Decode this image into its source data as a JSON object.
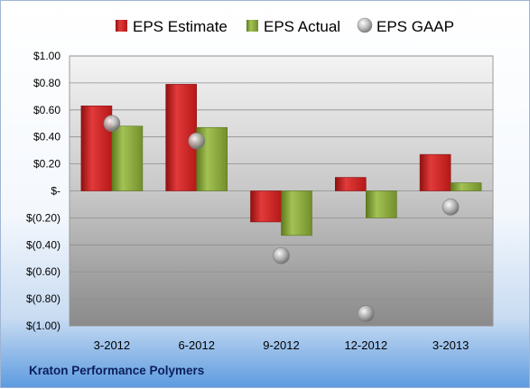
{
  "company": "Kraton Performance Polymers",
  "chart_data": {
    "type": "bar",
    "categories": [
      "3-2012",
      "6-2012",
      "9-2012",
      "12-2012",
      "3-2013"
    ],
    "series": [
      {
        "name": "EPS Estimate",
        "kind": "bar",
        "color": "#d42a2a",
        "values": [
          0.63,
          0.79,
          -0.23,
          0.1,
          0.27
        ]
      },
      {
        "name": "EPS Actual",
        "kind": "bar",
        "color": "#8dac3c",
        "values": [
          0.48,
          0.47,
          -0.33,
          -0.2,
          0.06
        ]
      },
      {
        "name": "EPS GAAP",
        "kind": "scatter",
        "color": "#b8b8b8",
        "values": [
          0.5,
          0.37,
          -0.48,
          -0.91,
          -0.12
        ]
      }
    ],
    "yticks": [
      "$1.00",
      "$0.80",
      "$0.60",
      "$0.40",
      "$0.20",
      "$-",
      "$(0.20)",
      "$(0.40)",
      "$(0.60)",
      "$(0.80)",
      "$(1.00)"
    ],
    "ylim": [
      -1.0,
      1.0
    ],
    "grid": true,
    "legend_position": "top"
  }
}
